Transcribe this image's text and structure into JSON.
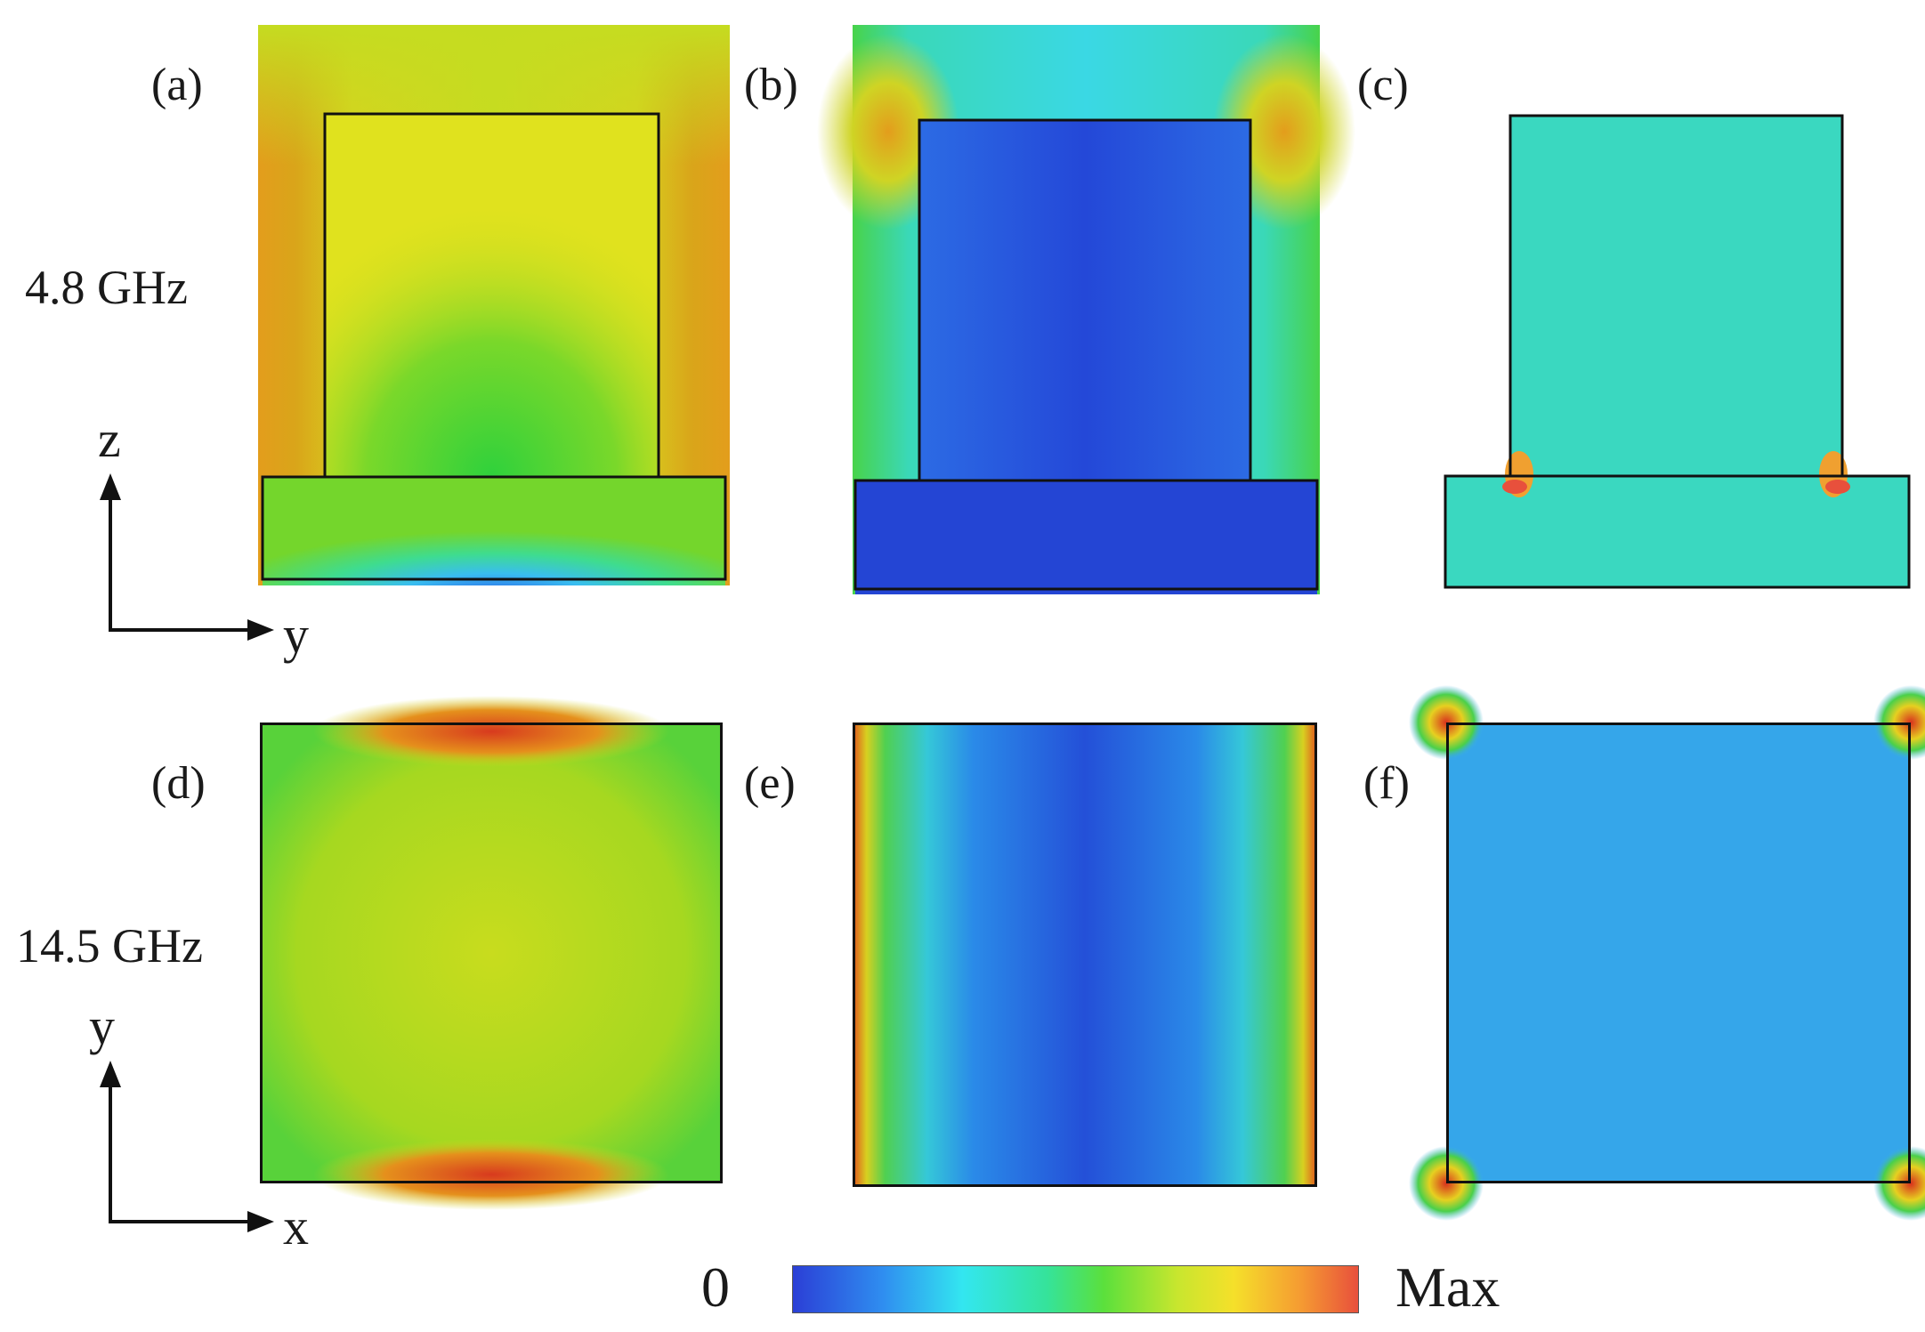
{
  "panels": {
    "a": {
      "label": "(a)"
    },
    "b": {
      "label": "(b)"
    },
    "c": {
      "label": "(c)"
    },
    "d": {
      "label": "(d)"
    },
    "e": {
      "label": "(e)"
    },
    "f": {
      "label": "(f)"
    }
  },
  "rows": {
    "top_freq": "4.8 GHz",
    "bottom_freq": "14.5 GHz"
  },
  "axes": {
    "top": {
      "vertical": "z",
      "horizontal": "y"
    },
    "bottom": {
      "vertical": "y",
      "horizontal": "x"
    }
  },
  "colorbar": {
    "min_label": "0",
    "max_label": "Max",
    "colors": [
      "#2b3fd6",
      "#33e6f0",
      "#5be03c",
      "#f5e02a",
      "#e8503c"
    ]
  }
}
